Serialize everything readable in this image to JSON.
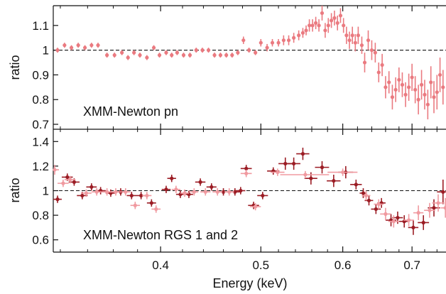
{
  "colors": {
    "pn": "#ea7a80",
    "rgs1": "#9b1c24",
    "rgs2": "#f09aa0",
    "axis": "#111111",
    "reference": "#111111"
  },
  "chart_data": [
    {
      "type": "scatter",
      "title": "",
      "annotation": "XMM-Newton pn",
      "xlabel": "",
      "ylabel": "ratio",
      "log_x": true,
      "xlim": [
        0.315,
        0.755
      ],
      "ylim": [
        0.68,
        1.18
      ],
      "xticks_major": [
        0.4,
        0.5,
        0.6,
        0.7
      ],
      "xticks_minor": [
        0.32,
        0.34,
        0.36,
        0.38,
        0.42,
        0.44,
        0.46,
        0.48,
        0.52,
        0.54,
        0.56,
        0.58,
        0.62,
        0.64,
        0.66,
        0.68,
        0.72,
        0.74
      ],
      "yticks": [
        0.7,
        0.8,
        0.9,
        1.0,
        1.1
      ],
      "ytick_labels": [
        "0.7",
        "0.8",
        "0.9",
        "1",
        "1.1"
      ],
      "reference_line": 1.0,
      "series": [
        {
          "color_key": "pn",
          "points": [
            [
              0.318,
              1.0,
              0.01
            ],
            [
              0.323,
              1.02,
              0.01
            ],
            [
              0.328,
              1.01,
              0.01
            ],
            [
              0.333,
              1.02,
              0.01
            ],
            [
              0.338,
              1.01,
              0.01
            ],
            [
              0.343,
              1.02,
              0.01
            ],
            [
              0.348,
              1.02,
              0.01
            ],
            [
              0.355,
              0.98,
              0.01
            ],
            [
              0.361,
              0.98,
              0.01
            ],
            [
              0.367,
              0.99,
              0.01
            ],
            [
              0.372,
              0.97,
              0.01
            ],
            [
              0.377,
              0.99,
              0.01
            ],
            [
              0.382,
              0.98,
              0.01
            ],
            [
              0.388,
              0.97,
              0.01
            ],
            [
              0.394,
              1.01,
              0.01
            ],
            [
              0.399,
              0.98,
              0.01
            ],
            [
              0.405,
              0.99,
              0.01
            ],
            [
              0.41,
              0.98,
              0.01
            ],
            [
              0.415,
              0.99,
              0.01
            ],
            [
              0.421,
              0.98,
              0.01
            ],
            [
              0.427,
              0.98,
              0.01
            ],
            [
              0.433,
              1.0,
              0.01
            ],
            [
              0.439,
              1.0,
              0.01
            ],
            [
              0.445,
              1.0,
              0.01
            ],
            [
              0.451,
              0.98,
              0.01
            ],
            [
              0.457,
              0.98,
              0.01
            ],
            [
              0.463,
              0.98,
              0.01
            ],
            [
              0.469,
              0.98,
              0.01
            ],
            [
              0.475,
              0.99,
              0.01
            ],
            [
              0.481,
              1.04,
              0.015
            ],
            [
              0.487,
              1.0,
              0.01
            ],
            [
              0.494,
              0.99,
              0.01
            ],
            [
              0.5,
              1.03,
              0.015
            ],
            [
              0.507,
              1.01,
              0.015
            ],
            [
              0.513,
              1.03,
              0.015
            ],
            [
              0.52,
              1.03,
              0.015
            ],
            [
              0.526,
              1.04,
              0.02
            ],
            [
              0.532,
              1.04,
              0.02
            ],
            [
              0.538,
              1.05,
              0.02
            ],
            [
              0.544,
              1.06,
              0.02
            ],
            [
              0.549,
              1.07,
              0.02
            ],
            [
              0.553,
              1.08,
              0.02
            ],
            [
              0.557,
              1.1,
              0.025
            ],
            [
              0.561,
              1.1,
              0.025
            ],
            [
              0.565,
              1.11,
              0.025
            ],
            [
              0.569,
              1.1,
              0.025
            ],
            [
              0.573,
              1.15,
              0.03
            ],
            [
              0.577,
              1.08,
              0.03
            ],
            [
              0.581,
              1.1,
              0.03
            ],
            [
              0.585,
              1.12,
              0.03
            ],
            [
              0.589,
              1.13,
              0.03
            ],
            [
              0.593,
              1.11,
              0.03
            ],
            [
              0.597,
              1.14,
              0.03
            ],
            [
              0.601,
              1.1,
              0.03
            ],
            [
              0.605,
              1.06,
              0.035
            ],
            [
              0.609,
              1.04,
              0.035
            ],
            [
              0.613,
              1.06,
              0.035
            ],
            [
              0.617,
              1.03,
              0.035
            ],
            [
              0.621,
              1.06,
              0.035
            ],
            [
              0.626,
              1.02,
              0.035
            ],
            [
              0.63,
              0.95,
              0.04
            ],
            [
              0.635,
              1.04,
              0.04
            ],
            [
              0.64,
              1.0,
              0.04
            ],
            [
              0.645,
              0.99,
              0.04
            ],
            [
              0.65,
              0.91,
              0.04
            ],
            [
              0.655,
              0.94,
              0.045
            ],
            [
              0.66,
              0.85,
              0.045
            ],
            [
              0.665,
              0.87,
              0.045
            ],
            [
              0.67,
              0.81,
              0.05
            ],
            [
              0.675,
              0.84,
              0.05
            ],
            [
              0.68,
              0.88,
              0.05
            ],
            [
              0.685,
              0.86,
              0.05
            ],
            [
              0.69,
              0.82,
              0.05
            ],
            [
              0.695,
              0.85,
              0.055
            ],
            [
              0.7,
              0.89,
              0.055
            ],
            [
              0.705,
              0.84,
              0.055
            ],
            [
              0.71,
              0.8,
              0.06
            ],
            [
              0.715,
              0.86,
              0.06
            ],
            [
              0.72,
              0.82,
              0.06
            ],
            [
              0.725,
              0.78,
              0.06
            ],
            [
              0.73,
              0.87,
              0.065
            ],
            [
              0.735,
              0.81,
              0.065
            ],
            [
              0.74,
              0.83,
              0.07
            ],
            [
              0.745,
              0.9,
              0.07
            ],
            [
              0.75,
              0.85,
              0.07
            ]
          ]
        }
      ]
    },
    {
      "type": "scatter",
      "title": "",
      "annotation": "XMM-Newton RGS 1 and 2",
      "xlabel": "Energy (keV)",
      "ylabel": "ratio",
      "log_x": true,
      "xlim": [
        0.315,
        0.755
      ],
      "ylim": [
        0.5,
        1.5
      ],
      "xticks_major": [
        0.4,
        0.5,
        0.6,
        0.7
      ],
      "xtick_labels": [
        "0.4",
        "0.5",
        "0.6",
        "0.7"
      ],
      "xticks_minor": [
        0.32,
        0.34,
        0.36,
        0.38,
        0.42,
        0.44,
        0.46,
        0.48,
        0.52,
        0.54,
        0.56,
        0.58,
        0.62,
        0.64,
        0.66,
        0.68,
        0.72,
        0.74
      ],
      "yticks": [
        0.6,
        0.8,
        1.0,
        1.2,
        1.4
      ],
      "ytick_labels": [
        "0.6",
        "0.8",
        "1",
        "1.2",
        "1.4"
      ],
      "reference_line": 1.0,
      "series": [
        {
          "color_key": "rgs1",
          "points": [
            [
              0.318,
              0.93,
              0.003,
              0.03
            ],
            [
              0.325,
              1.11,
              0.004,
              0.03
            ],
            [
              0.33,
              1.07,
              0.004,
              0.03
            ],
            [
              0.336,
              0.96,
              0.004,
              0.03
            ],
            [
              0.343,
              1.03,
              0.004,
              0.03
            ],
            [
              0.35,
              1.0,
              0.004,
              0.03
            ],
            [
              0.358,
              0.98,
              0.004,
              0.03
            ],
            [
              0.366,
              0.99,
              0.004,
              0.03
            ],
            [
              0.375,
              0.96,
              0.004,
              0.03
            ],
            [
              0.383,
              0.96,
              0.004,
              0.03
            ],
            [
              0.392,
              0.9,
              0.004,
              0.03
            ],
            [
              0.405,
              1.01,
              0.004,
              0.03
            ],
            [
              0.41,
              1.1,
              0.004,
              0.03
            ],
            [
              0.418,
              0.97,
              0.004,
              0.03
            ],
            [
              0.426,
              0.97,
              0.004,
              0.03
            ],
            [
              0.437,
              1.07,
              0.005,
              0.03
            ],
            [
              0.448,
              1.03,
              0.005,
              0.03
            ],
            [
              0.46,
              0.99,
              0.005,
              0.03
            ],
            [
              0.472,
              0.99,
              0.005,
              0.03
            ],
            [
              0.478,
              1.0,
              0.005,
              0.03
            ],
            [
              0.484,
              1.18,
              0.006,
              0.03
            ],
            [
              0.492,
              0.88,
              0.006,
              0.03
            ],
            [
              0.502,
              0.96,
              0.006,
              0.03
            ],
            [
              0.514,
              1.16,
              0.007,
              0.03
            ],
            [
              0.528,
              1.22,
              0.008,
              0.05
            ],
            [
              0.538,
              1.22,
              0.008,
              0.05
            ],
            [
              0.549,
              1.3,
              0.008,
              0.05
            ],
            [
              0.559,
              1.1,
              0.008,
              0.05
            ],
            [
              0.573,
              1.19,
              0.009,
              0.05
            ],
            [
              0.588,
              1.08,
              0.009,
              0.05
            ],
            [
              0.604,
              1.15,
              0.01,
              0.05
            ],
            [
              0.618,
              1.05,
              0.008,
              0.04
            ],
            [
              0.628,
              0.98,
              0.005,
              0.04
            ],
            [
              0.636,
              0.92,
              0.006,
              0.04
            ],
            [
              0.646,
              0.85,
              0.007,
              0.04
            ],
            [
              0.654,
              0.9,
              0.006,
              0.04
            ],
            [
              0.668,
              0.76,
              0.008,
              0.05
            ],
            [
              0.678,
              0.78,
              0.008,
              0.05
            ],
            [
              0.688,
              0.75,
              0.008,
              0.05
            ],
            [
              0.702,
              0.7,
              0.008,
              0.06
            ],
            [
              0.718,
              0.74,
              0.009,
              0.06
            ],
            [
              0.735,
              0.86,
              0.01,
              0.07
            ],
            [
              0.75,
              0.99,
              0.01,
              0.1
            ]
          ]
        },
        {
          "color_key": "rgs2",
          "points": [
            [
              0.316,
              1.17,
              0.003,
              0.04
            ],
            [
              0.322,
              1.06,
              0.004,
              0.03
            ],
            [
              0.327,
              1.09,
              0.004,
              0.03
            ],
            [
              0.339,
              0.98,
              0.004,
              0.03
            ],
            [
              0.347,
              0.99,
              0.004,
              0.03
            ],
            [
              0.355,
              0.99,
              0.004,
              0.03
            ],
            [
              0.362,
              0.99,
              0.004,
              0.03
            ],
            [
              0.37,
              0.99,
              0.004,
              0.03
            ],
            [
              0.378,
              0.88,
              0.004,
              0.03
            ],
            [
              0.388,
              0.96,
              0.004,
              0.03
            ],
            [
              0.396,
              0.85,
              0.004,
              0.03
            ],
            [
              0.414,
              1.01,
              0.004,
              0.03
            ],
            [
              0.422,
              0.98,
              0.004,
              0.03
            ],
            [
              0.431,
              0.99,
              0.004,
              0.03
            ],
            [
              0.442,
              0.99,
              0.005,
              0.03
            ],
            [
              0.454,
              0.99,
              0.005,
              0.03
            ],
            [
              0.466,
              0.99,
              0.005,
              0.03
            ],
            [
              0.484,
              1.14,
              0.006,
              0.03
            ],
            [
              0.494,
              0.87,
              0.006,
              0.03
            ],
            [
              0.519,
              1.15,
              0.008,
              0.03
            ],
            [
              0.552,
              1.13,
              0.03,
              0.03
            ],
            [
              0.6,
              1.15,
              0.02,
              0.03
            ],
            [
              0.632,
              0.96,
              0.006,
              0.04
            ],
            [
              0.65,
              0.89,
              0.007,
              0.04
            ],
            [
              0.66,
              0.81,
              0.008,
              0.05
            ],
            [
              0.672,
              0.75,
              0.008,
              0.05
            ],
            [
              0.695,
              0.76,
              0.008,
              0.05
            ],
            [
              0.71,
              0.82,
              0.008,
              0.06
            ],
            [
              0.728,
              0.84,
              0.009,
              0.06
            ],
            [
              0.742,
              0.9,
              0.01,
              0.07
            ],
            [
              0.754,
              0.86,
              0.008,
              0.08
            ]
          ]
        }
      ]
    }
  ]
}
